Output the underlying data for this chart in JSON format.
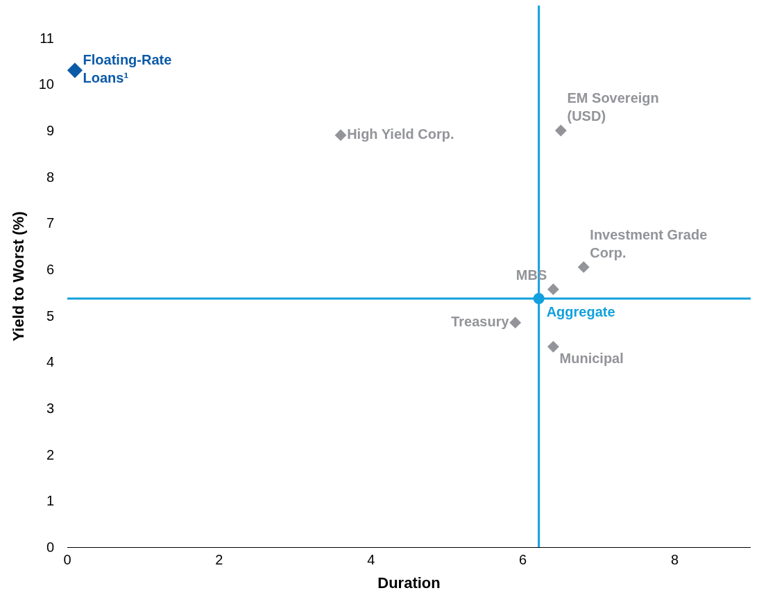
{
  "chart_data": {
    "type": "scatter",
    "xlabel": "Duration",
    "ylabel": "Yield to Worst (%)",
    "series": [
      {
        "name": "Floating-Rate\nLoans¹",
        "color": "#0b5aa8",
        "x": [
          0.1
        ],
        "values": [
          10.3
        ],
        "marker": "diamond"
      },
      {
        "name": "High Yield Corp.",
        "color": "#939499",
        "x": [
          3.6
        ],
        "values": [
          8.9
        ],
        "marker": "diamond"
      },
      {
        "name": "EM Sovereign\n(USD)",
        "color": "#939499",
        "x": [
          6.5
        ],
        "values": [
          9.0
        ],
        "marker": "diamond"
      },
      {
        "name": "Investment Grade\nCorp.",
        "color": "#939499",
        "x": [
          6.8
        ],
        "values": [
          6.05
        ],
        "marker": "diamond"
      },
      {
        "name": "MBS",
        "color": "#939499",
        "x": [
          6.4
        ],
        "values": [
          5.57
        ],
        "marker": "diamond"
      },
      {
        "name": "Aggregate",
        "color": "#12a0de",
        "x": [
          6.21
        ],
        "values": [
          5.37
        ],
        "marker": "circle"
      },
      {
        "name": "Treasury",
        "color": "#939499",
        "x": [
          5.9
        ],
        "values": [
          4.85
        ],
        "marker": "diamond"
      },
      {
        "name": "Municipal",
        "color": "#939499",
        "x": [
          6.4
        ],
        "values": [
          4.33
        ],
        "marker": "diamond"
      }
    ],
    "ref_lines": [
      {
        "axis": "x",
        "value": 6.21,
        "color": "#12a0de"
      },
      {
        "axis": "y",
        "value": 5.37,
        "color": "#12a0de"
      }
    ],
    "xlim": [
      0,
      9
    ],
    "xticks": [
      0,
      2,
      4,
      6,
      8
    ],
    "ylim": [
      0,
      11.7
    ],
    "yticks": [
      0,
      1,
      2,
      3,
      4,
      5,
      6,
      7,
      8,
      9,
      10,
      11
    ],
    "grid": false,
    "legend": false
  }
}
